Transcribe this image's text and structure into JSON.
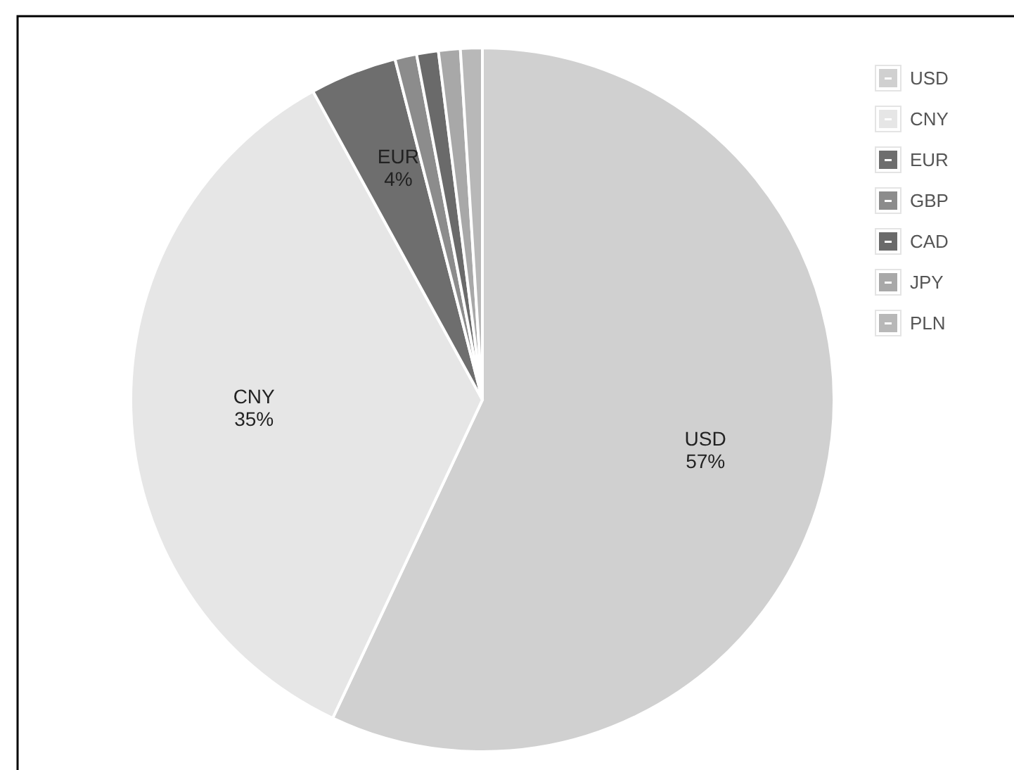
{
  "chart_data": {
    "type": "pie",
    "categories": [
      "USD",
      "CNY",
      "EUR",
      "GBP",
      "CAD",
      "JPY",
      "PLN"
    ],
    "values": [
      57,
      35,
      4,
      1,
      1,
      1,
      1
    ],
    "value_labels": [
      "57%",
      "35%",
      "4%",
      null,
      null,
      null,
      null
    ],
    "colors": [
      "#d0d0d0",
      "#e6e6e6",
      "#6e6e6e",
      "#8c8c8c",
      "#6a6a6a",
      "#a8a8a8",
      "#b8b8b8"
    ],
    "legend": "top right"
  }
}
